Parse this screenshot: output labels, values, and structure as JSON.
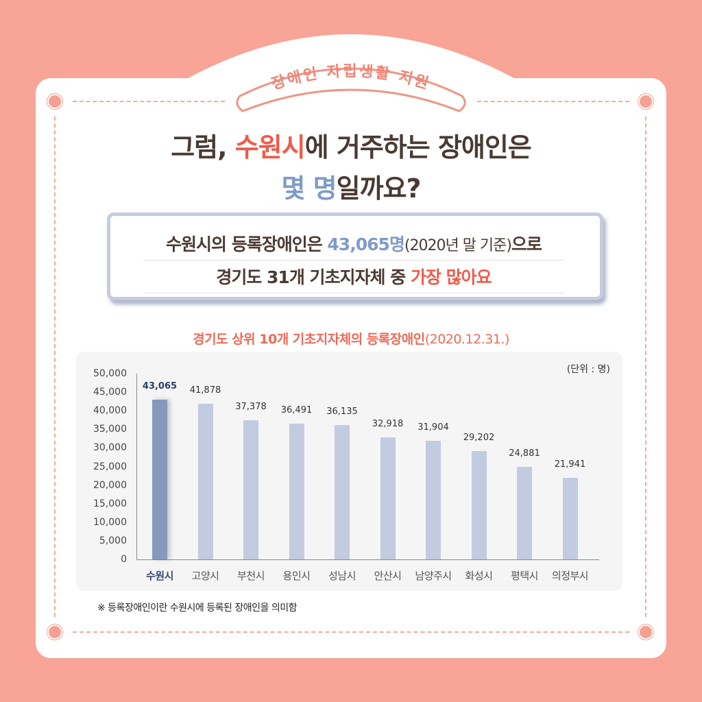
{
  "badge": {
    "text": "장애인 자립생활 지원"
  },
  "headline": {
    "line1_pre": "그럼, ",
    "line1_highlight": "수원시",
    "line1_post": "에 거주하는 장애인은",
    "line2_highlight": "몇 명",
    "line2_post": "일까요?"
  },
  "info_box": {
    "line1_pre": "수원시의 등록장애인은 ",
    "line1_value": "43,065명",
    "line1_sub": "(2020년 말 기준)",
    "line1_post": "으로",
    "line2_pre": "경기도 31개 기초지자체 중 ",
    "line2_highlight": "가장 많아요"
  },
  "chart_header": {
    "title": "경기도 상위 10개 기초지자체의 등록장애인",
    "date": "(2020.12.31.)",
    "unit": "(단위 : 명)"
  },
  "footnote": "※ 등록장애인이란 수원시에 등록된 장애인을 의미함",
  "colors": {
    "background": "#f8a496",
    "accent_red": "#ee5b4a",
    "accent_blue": "#7f9bc8",
    "bar_highlight": "#8599bd",
    "bar_default": "#c3cbe0",
    "text_dark": "#4a3a33"
  },
  "chart_data": {
    "type": "bar",
    "title": "경기도 상위 10개 기초지자체의 등록장애인(2020.12.31.)",
    "xlabel": "",
    "ylabel": "",
    "unit": "(단위 : 명)",
    "categories": [
      "수원시",
      "고양시",
      "부천시",
      "용인시",
      "성남시",
      "안산시",
      "남양주시",
      "화성시",
      "평택시",
      "의정부시"
    ],
    "values": [
      43065,
      41878,
      37378,
      36491,
      36135,
      32918,
      31904,
      29202,
      24881,
      21941
    ],
    "value_labels": [
      "43,065",
      "41,878",
      "37,378",
      "36,491",
      "36,135",
      "32,918",
      "31,904",
      "29,202",
      "24,881",
      "21,941"
    ],
    "highlight_index": 0,
    "ylim": [
      0,
      50000
    ],
    "yticks": [
      "50,000",
      "45,000",
      "40,000",
      "35,000",
      "30,000",
      "25,000",
      "20,000",
      "15,000",
      "10,000",
      "5,000",
      "0"
    ],
    "grid": false,
    "legend": "none"
  }
}
